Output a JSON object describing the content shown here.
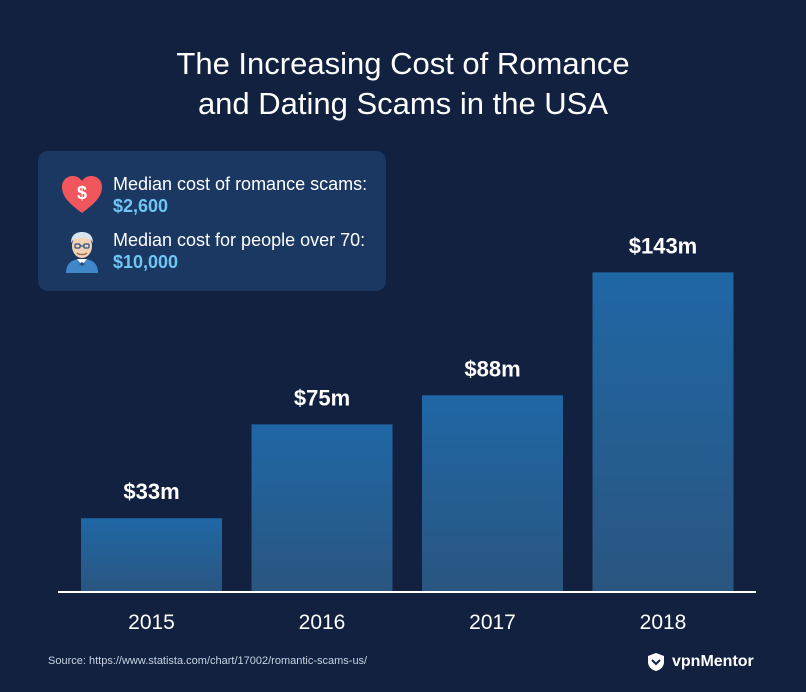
{
  "title_line1": "The Increasing Cost of Romance",
  "title_line2": "and Dating Scams in the USA",
  "info": {
    "row1_label": "Median cost of romance scams:",
    "row1_value": "$2,600",
    "row1_icon": "heart-dollar-icon",
    "row2_label": "Median cost for people over 70:",
    "row2_value": "$10,000",
    "row2_icon": "elderly-person-icon"
  },
  "source": "Source: https://www.statista.com/chart/17002/romantic-scams-us/",
  "brand": "vpnMentor",
  "colors": {
    "background": "#12213f",
    "bar_top": "#1f67a5",
    "bar_bottom": "#2a5580",
    "accent_value": "#6fc6f5",
    "heart": "#f0565b"
  },
  "chart_data": {
    "type": "bar",
    "categories": [
      "2015",
      "2016",
      "2017",
      "2018"
    ],
    "values": [
      33,
      75,
      88,
      143
    ],
    "data_labels": [
      "$33m",
      "$75m",
      "$88m",
      "$143m"
    ],
    "unit": "$m",
    "ylim": [
      0,
      170
    ],
    "grid": false,
    "y_axis_visible": false
  }
}
